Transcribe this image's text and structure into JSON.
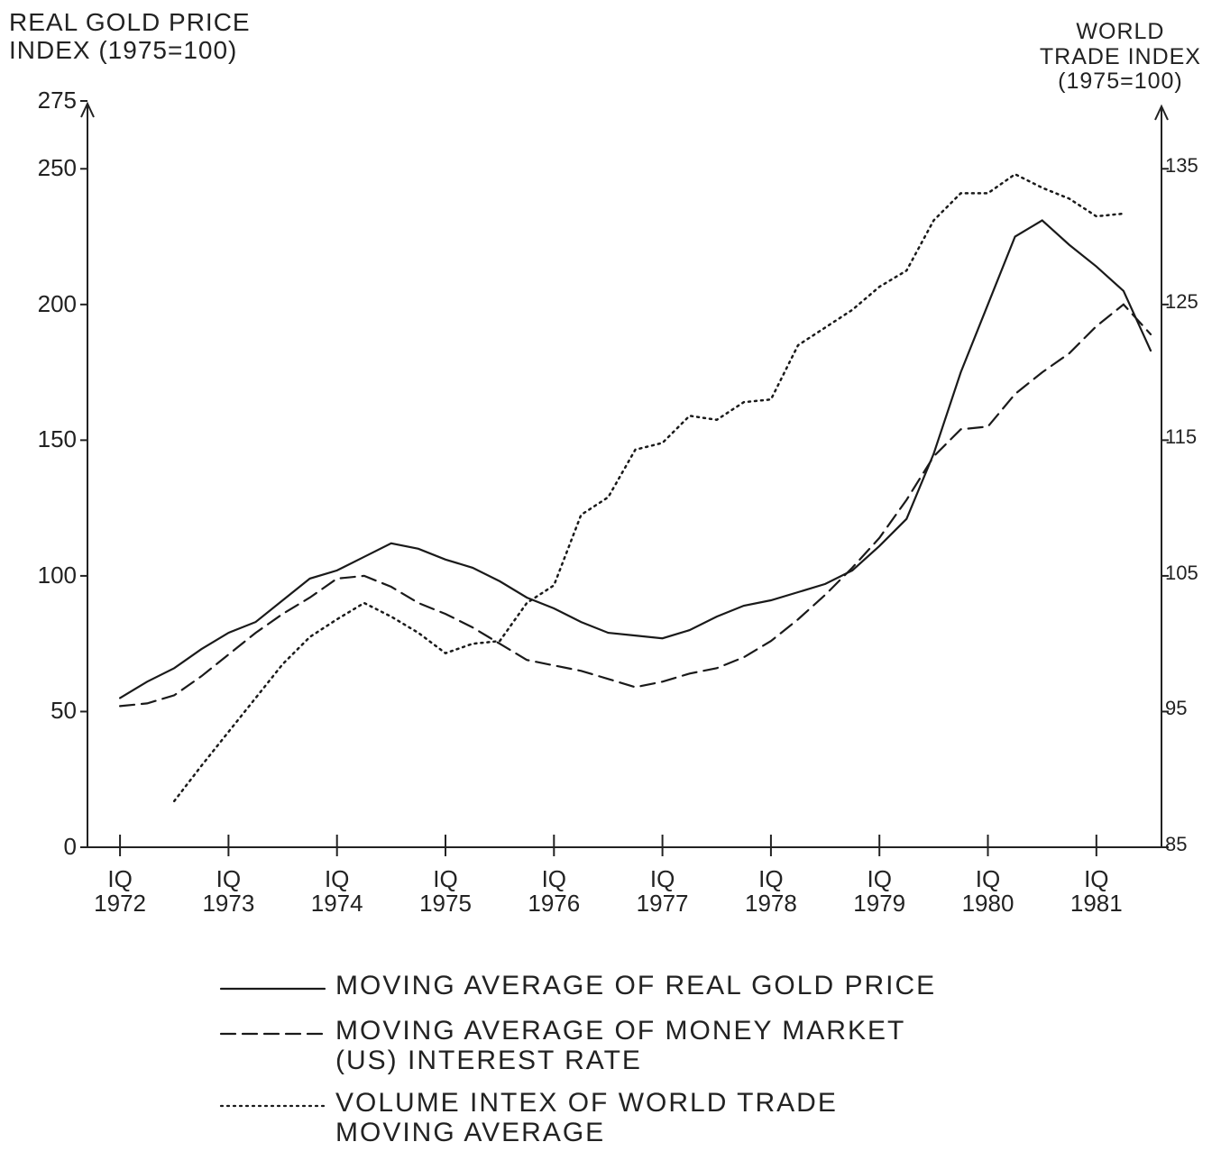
{
  "chart_data": {
    "type": "line",
    "ylabel": "REAL GOLD PRICE\nINDEX (1975=100)",
    "y2label": "WORLD\nTRADE INDEX\n(1975=100)",
    "x": [
      1972,
      1972.25,
      1972.5,
      1972.75,
      1973,
      1973.25,
      1973.5,
      1973.75,
      1974,
      1974.25,
      1974.5,
      1974.75,
      1975,
      1975.25,
      1975.5,
      1975.75,
      1976,
      1976.25,
      1976.5,
      1976.75,
      1977,
      1977.25,
      1977.5,
      1977.75,
      1978,
      1978.25,
      1978.5,
      1978.75,
      1979,
      1979.25,
      1979.5,
      1979.75,
      1980,
      1980.25,
      1980.5,
      1980.75,
      1981,
      1981.25,
      1981.5
    ],
    "series": [
      {
        "name": "MOVING AVERAGE OF REAL GOLD PRICE",
        "color": "#1a1a1a",
        "dash": "solid",
        "values": [
          55,
          61,
          66,
          73,
          79,
          83,
          91,
          99,
          102,
          107,
          112,
          110,
          106,
          103,
          98,
          92,
          88,
          83,
          79,
          78,
          77,
          80,
          85,
          89,
          91,
          94,
          97,
          102,
          111,
          121,
          145,
          175,
          200,
          225,
          231,
          222,
          214,
          205,
          183
        ]
      },
      {
        "name": "MOVING AVERAGE OF MONEY MARKET\n(US) INTEREST RATE",
        "color": "#1a1a1a",
        "dash": "dashed",
        "values": [
          52,
          53,
          56,
          63,
          71,
          79,
          86,
          92,
          99,
          100,
          96,
          90,
          86,
          81,
          75,
          69,
          67,
          65,
          62,
          59,
          61,
          64,
          66,
          70,
          76,
          84,
          93,
          103,
          114,
          128,
          144,
          154,
          155,
          167,
          175,
          182,
          192,
          200,
          189
        ]
      },
      {
        "name": "VOLUME INTEX OF WORLD TRADE\nMOVING AVERAGE",
        "color": "#1a1a1a",
        "dash": "dotted",
        "axis": "y2",
        "values": [
          null,
          null,
          88.4,
          91,
          93.5,
          96,
          98.5,
          100.5,
          101.8,
          103,
          102,
          100.8,
          99.3,
          100,
          100.2,
          103,
          104.3,
          109.5,
          110.8,
          114.3,
          114.8,
          116.8,
          116.5,
          117.8,
          118,
          122,
          123.3,
          124.6,
          126.3,
          127.5,
          131.2,
          133.2,
          133.2,
          134.6,
          133.6,
          132.8,
          131.5,
          131.7,
          null
        ]
      }
    ],
    "xlim": [
      1971.7,
      1981.6
    ],
    "xticks": [
      {
        "value": 1972,
        "label": "IQ\n1972"
      },
      {
        "value": 1973,
        "label": "IQ\n1973"
      },
      {
        "value": 1974,
        "label": "IQ\n1974"
      },
      {
        "value": 1975,
        "label": "IQ\n1975"
      },
      {
        "value": 1976,
        "label": "IQ\n1976"
      },
      {
        "value": 1977,
        "label": "IQ\n1977"
      },
      {
        "value": 1978,
        "label": "IQ\n1978"
      },
      {
        "value": 1979,
        "label": "IQ\n1979"
      },
      {
        "value": 1980,
        "label": "IQ\n1980"
      },
      {
        "value": 1981,
        "label": "IQ\n1981"
      }
    ],
    "ylim": [
      0,
      275
    ],
    "yticks": [
      0,
      50,
      100,
      150,
      200,
      250,
      275
    ],
    "y2lim": [
      85,
      140
    ],
    "y2ticks": [
      85,
      95,
      105,
      115,
      125,
      135
    ]
  }
}
